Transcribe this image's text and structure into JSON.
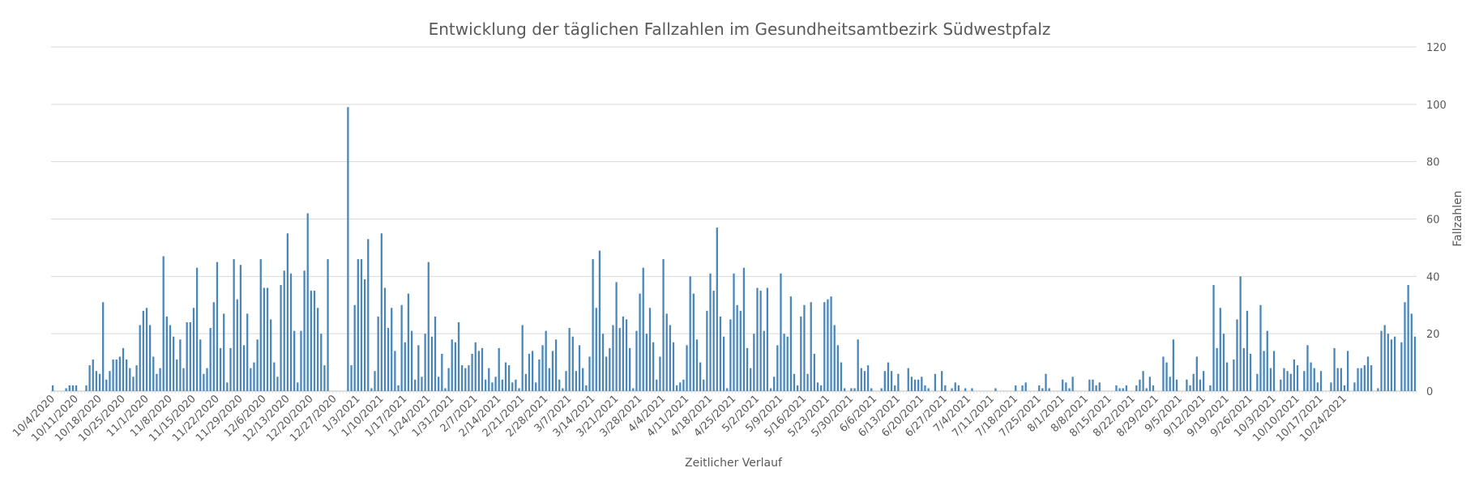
{
  "chart_data": {
    "type": "bar",
    "title": "Entwicklung der täglichen Fallzahlen im Gesundheitsamtbezirk Südwestpfalz",
    "xlabel": "Zeitlicher Verlauf",
    "ylabel": "Fallzahlen",
    "ylim": [
      0,
      120
    ],
    "yticks": [
      0,
      20,
      40,
      60,
      80,
      100,
      120
    ],
    "y_axis_side": "right",
    "grid": true,
    "legend": "none",
    "bar_color": "#4a86b8",
    "start_date": "2020-10-04",
    "x_tick_labels": [
      "10/4/2020",
      "10/11/2020",
      "10/18/2020",
      "10/25/2020",
      "11/1/2020",
      "11/8/2020",
      "11/15/2020",
      "11/22/2020",
      "11/29/2020",
      "12/6/2020",
      "12/13/2020",
      "12/20/2020",
      "12/27/2020",
      "1/3/2021",
      "1/10/2021",
      "1/17/2021",
      "1/24/2021",
      "1/31/2021",
      "2/7/2021",
      "2/14/2021",
      "2/21/2021",
      "2/28/2021",
      "3/7/2021",
      "3/14/2021",
      "3/21/2021",
      "3/28/2021",
      "4/4/2021",
      "4/11/2021",
      "4/18/2021",
      "4/25/2021",
      "5/2/2021",
      "5/9/2021",
      "5/16/2021",
      "5/23/2021",
      "5/30/2021",
      "6/6/2021",
      "6/13/2021",
      "6/20/2021",
      "6/27/2021",
      "7/4/2021",
      "7/11/2021",
      "7/18/2021",
      "7/25/2021",
      "8/1/2021",
      "8/8/2021",
      "8/15/2021",
      "8/22/2021",
      "8/29/2021",
      "9/5/2021",
      "9/12/2021",
      "9/19/2021",
      "9/26/2021",
      "10/3/2021",
      "10/10/2021",
      "10/17/2021",
      "10/24/2021"
    ],
    "values": [
      2,
      0,
      0,
      0,
      1,
      2,
      2,
      2,
      0,
      0,
      2,
      9,
      11,
      7,
      6,
      31,
      4,
      7,
      11,
      11,
      12,
      15,
      11,
      8,
      5,
      9,
      23,
      28,
      29,
      23,
      12,
      6,
      8,
      47,
      26,
      23,
      19,
      11,
      18,
      8,
      24,
      24,
      29,
      43,
      18,
      6,
      8,
      22,
      31,
      45,
      15,
      27,
      3,
      15,
      46,
      32,
      44,
      16,
      27,
      8,
      10,
      18,
      46,
      36,
      36,
      25,
      10,
      5,
      37,
      42,
      55,
      41,
      21,
      3,
      21,
      42,
      62,
      35,
      35,
      29,
      20,
      9,
      46,
      0,
      0,
      0,
      0,
      0,
      99,
      9,
      30,
      46,
      46,
      39,
      53,
      1,
      7,
      26,
      55,
      36,
      22,
      29,
      14,
      2,
      30,
      17,
      34,
      21,
      4,
      16,
      5,
      20,
      45,
      19,
      26,
      5,
      13,
      1,
      8,
      18,
      17,
      24,
      9,
      8,
      9,
      13,
      17,
      14,
      15,
      4,
      8,
      3,
      5,
      15,
      4,
      10,
      9,
      3,
      4,
      1,
      23,
      6,
      13,
      14,
      3,
      11,
      16,
      21,
      8,
      14,
      18,
      4,
      1,
      7,
      22,
      19,
      7,
      16,
      8,
      2,
      12,
      46,
      29,
      49,
      20,
      12,
      15,
      23,
      38,
      22,
      26,
      25,
      15,
      1,
      21,
      34,
      43,
      20,
      29,
      17,
      4,
      12,
      46,
      27,
      23,
      17,
      2,
      3,
      4,
      16,
      40,
      34,
      18,
      10,
      4,
      28,
      41,
      35,
      57,
      26,
      19,
      1,
      25,
      41,
      30,
      28,
      43,
      15,
      8,
      20,
      36,
      35,
      21,
      36,
      1,
      5,
      16,
      41,
      20,
      19,
      33,
      6,
      2,
      26,
      30,
      6,
      31,
      13,
      3,
      2,
      31,
      32,
      33,
      23,
      16,
      10,
      1,
      0,
      1,
      1,
      18,
      8,
      7,
      9,
      1,
      0,
      0,
      1,
      7,
      10,
      7,
      2,
      6,
      0,
      0,
      8,
      5,
      4,
      4,
      5,
      2,
      1,
      0,
      6,
      0,
      7,
      2,
      0,
      1,
      3,
      2,
      0,
      1,
      0,
      1,
      0,
      0,
      0,
      0,
      0,
      0,
      1,
      0,
      0,
      0,
      0,
      0,
      2,
      0,
      2,
      3,
      0,
      0,
      0,
      2,
      1,
      6,
      1,
      0,
      0,
      0,
      4,
      3,
      1,
      5,
      0,
      0,
      0,
      0,
      4,
      4,
      2,
      3,
      0,
      0,
      0,
      0,
      2,
      1,
      1,
      2,
      0,
      0,
      2,
      4,
      7,
      1,
      5,
      2,
      0,
      0,
      12,
      10,
      5,
      18,
      4,
      0,
      0,
      4,
      2,
      6,
      12,
      4,
      7,
      0,
      2,
      37,
      15,
      29,
      20,
      10,
      0,
      11,
      25,
      40,
      15,
      28,
      13,
      0,
      6,
      30,
      14,
      21,
      8,
      14,
      0,
      4,
      8,
      7,
      6,
      11,
      9,
      0,
      7,
      16,
      10,
      8,
      3,
      7,
      0,
      0,
      3,
      15,
      8,
      8,
      2,
      14,
      0,
      3,
      8,
      8,
      9,
      12,
      9,
      0,
      1,
      21,
      23,
      20,
      18,
      19,
      0,
      17,
      31,
      37,
      27,
      19
    ]
  }
}
